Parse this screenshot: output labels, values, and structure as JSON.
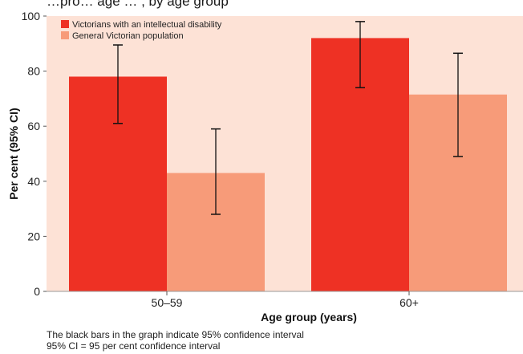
{
  "chart_data": {
    "type": "bar",
    "title": "",
    "title_partial": "…pro… age … , by age group",
    "categories": [
      "50–59",
      "60+"
    ],
    "series": [
      {
        "name": "Victorians with an intellectual disability",
        "values": [
          78,
          92
        ],
        "ci_low": [
          61,
          74
        ],
        "ci_high": [
          89.5,
          98
        ]
      },
      {
        "name": "General Victorian population",
        "values": [
          43,
          71.5
        ],
        "ci_low": [
          28,
          49
        ],
        "ci_high": [
          59,
          86.5
        ]
      }
    ],
    "xlabel": "Age group (years)",
    "ylabel": "Per cent (95% CI)",
    "ylim": [
      0,
      100
    ],
    "yticks": [
      0,
      20,
      40,
      60,
      80,
      100
    ],
    "grid": false,
    "legend_position": "top-left",
    "colors": {
      "plot_background": "#fde2d6",
      "series_0": "#ee3124",
      "series_1": "#f79b79",
      "error_bar": "#111111"
    }
  },
  "footnotes": [
    "The black bars in the graph indicate 95% confidence interval",
    "95% CI = 95 per cent confidence interval"
  ]
}
